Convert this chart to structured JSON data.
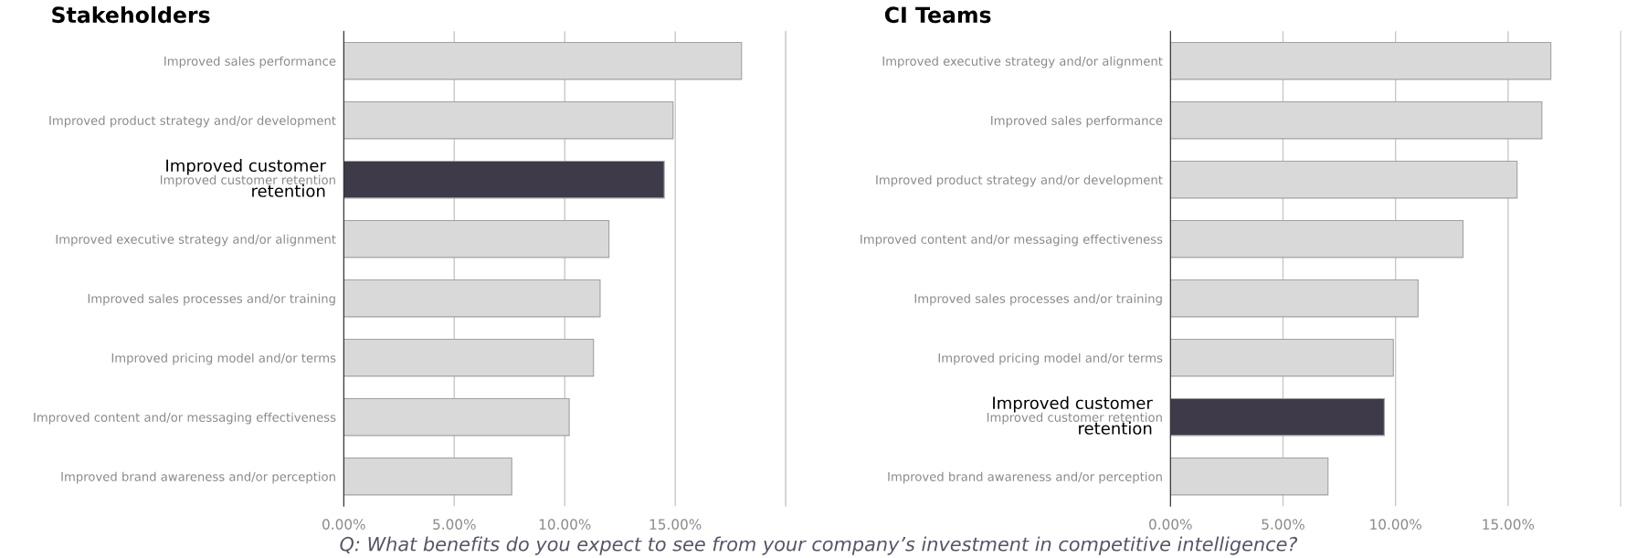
{
  "chart_data": [
    {
      "type": "bar",
      "orientation": "horizontal",
      "title": "Stakeholders",
      "categories": [
        "Improved sales performance",
        "Improved product strategy and/or development",
        "Improved customer retention",
        "Improved executive strategy and/or alignment",
        "Improved sales processes and/or training",
        "Improved pricing model and/or terms",
        "Improved content and/or messaging effectiveness",
        "Improved brand awareness and/or perception"
      ],
      "values": [
        18.0,
        14.9,
        14.5,
        12.0,
        11.6,
        11.3,
        10.2,
        7.6
      ],
      "colors": [
        "#d9d9d9",
        "#d9d9d9",
        "#3e3a4a",
        "#d9d9d9",
        "#d9d9d9",
        "#d9d9d9",
        "#d9d9d9",
        "#d9d9d9"
      ],
      "xlim": [
        0,
        20
      ],
      "xticks": [
        {
          "value": 0,
          "label": "0.00%"
        },
        {
          "value": 5,
          "label": "5.00%"
        },
        {
          "value": 10,
          "label": "10.00%"
        },
        {
          "value": 15,
          "label": "15.00%"
        },
        {
          "value": 20,
          "label": null
        }
      ],
      "grid": "x",
      "annotations": [
        {
          "text": "Improved customer retention",
          "x": 0,
          "y": "Improved customer retention"
        },
        "Q: What benefits do you expect to see from your company’s investment in competitive intelligence?"
      ]
    },
    {
      "type": "bar",
      "orientation": "horizontal",
      "title": "CI Teams",
      "categories": [
        "Improved executive strategy and/or alignment",
        "Improved sales performance",
        "Improved product strategy and/or development",
        "Improved content and/or messaging effectiveness",
        "Improved sales processes and/or training",
        "Improved pricing model and/or terms",
        "Improved customer retention",
        "Improved brand awareness and/or perception"
      ],
      "values": [
        16.9,
        16.5,
        15.4,
        13.0,
        11.0,
        9.9,
        9.5,
        7.0
      ],
      "colors": [
        "#d9d9d9",
        "#d9d9d9",
        "#d9d9d9",
        "#d9d9d9",
        "#d9d9d9",
        "#d9d9d9",
        "#3e3a4a",
        "#d9d9d9"
      ],
      "xlim": [
        0,
        20
      ],
      "xticks": [
        {
          "value": 0,
          "label": "0.00%"
        },
        {
          "value": 5,
          "label": "5.00%"
        },
        {
          "value": 10,
          "label": "10.00%"
        },
        {
          "value": 15,
          "label": "15.00%"
        }
      ],
      "grid": "x",
      "annotations": [
        {
          "text": "Improved customer retention",
          "x": 0,
          "y": "Improved customer retention"
        }
      ]
    }
  ]
}
